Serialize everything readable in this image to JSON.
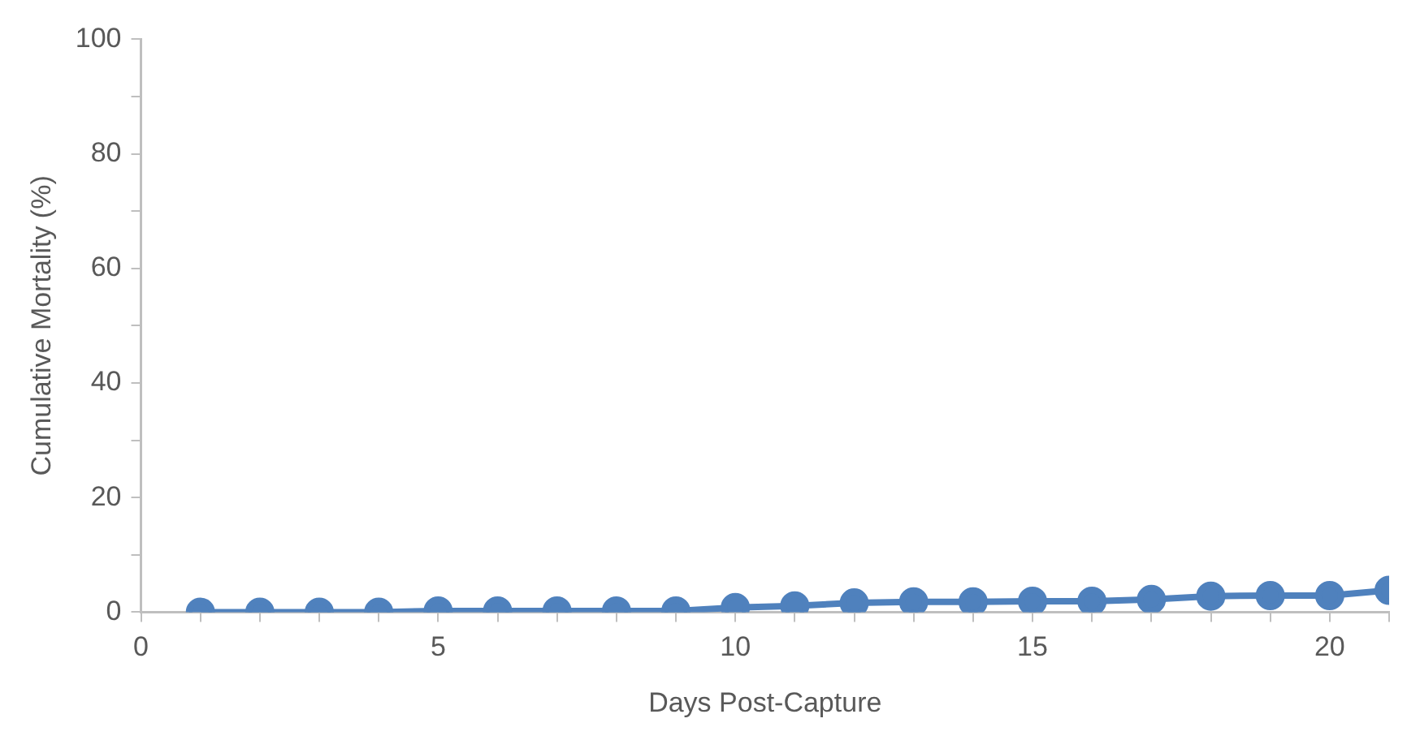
{
  "chart_data": {
    "type": "line",
    "xlabel": "Days Post-Capture",
    "ylabel": "Cumulative Mortality (%)",
    "x": [
      1,
      2,
      3,
      4,
      5,
      6,
      7,
      8,
      9,
      10,
      11,
      12,
      13,
      14,
      15,
      16,
      17,
      18,
      19,
      20,
      21
    ],
    "series": [
      {
        "color": "#4f81bd",
        "values": [
          0,
          0,
          0,
          0,
          0.2,
          0.2,
          0.2,
          0.2,
          0.2,
          0.8,
          1.1,
          1.6,
          1.8,
          1.8,
          1.9,
          1.9,
          2.2,
          2.8,
          2.9,
          2.9,
          3.8
        ]
      }
    ],
    "xlim": [
      0,
      21
    ],
    "xticks": [
      0,
      {
        "value": 1,
        "label": null
      },
      {
        "value": 2,
        "label": null
      },
      {
        "value": 3,
        "label": null
      },
      {
        "value": 4,
        "label": null
      },
      5,
      {
        "value": 6,
        "label": null
      },
      {
        "value": 7,
        "label": null
      },
      {
        "value": 8,
        "label": null
      },
      {
        "value": 9,
        "label": null
      },
      10,
      {
        "value": 11,
        "label": null
      },
      {
        "value": 12,
        "label": null
      },
      {
        "value": 13,
        "label": null
      },
      {
        "value": 14,
        "label": null
      },
      15,
      {
        "value": 16,
        "label": null
      },
      {
        "value": 17,
        "label": null
      },
      {
        "value": 18,
        "label": null
      },
      {
        "value": 19,
        "label": null
      },
      20,
      {
        "value": 21,
        "label": null
      }
    ],
    "ylim": [
      0,
      100
    ],
    "yticks": [
      0,
      {
        "value": 10,
        "label": null
      },
      20,
      {
        "value": 30,
        "label": null
      },
      40,
      {
        "value": 50,
        "label": null
      },
      60,
      {
        "value": 70,
        "label": null
      },
      80,
      {
        "value": 90,
        "label": null
      },
      100
    ],
    "grid": false,
    "legend": false,
    "marker": "circle",
    "line_style": "solid"
  }
}
